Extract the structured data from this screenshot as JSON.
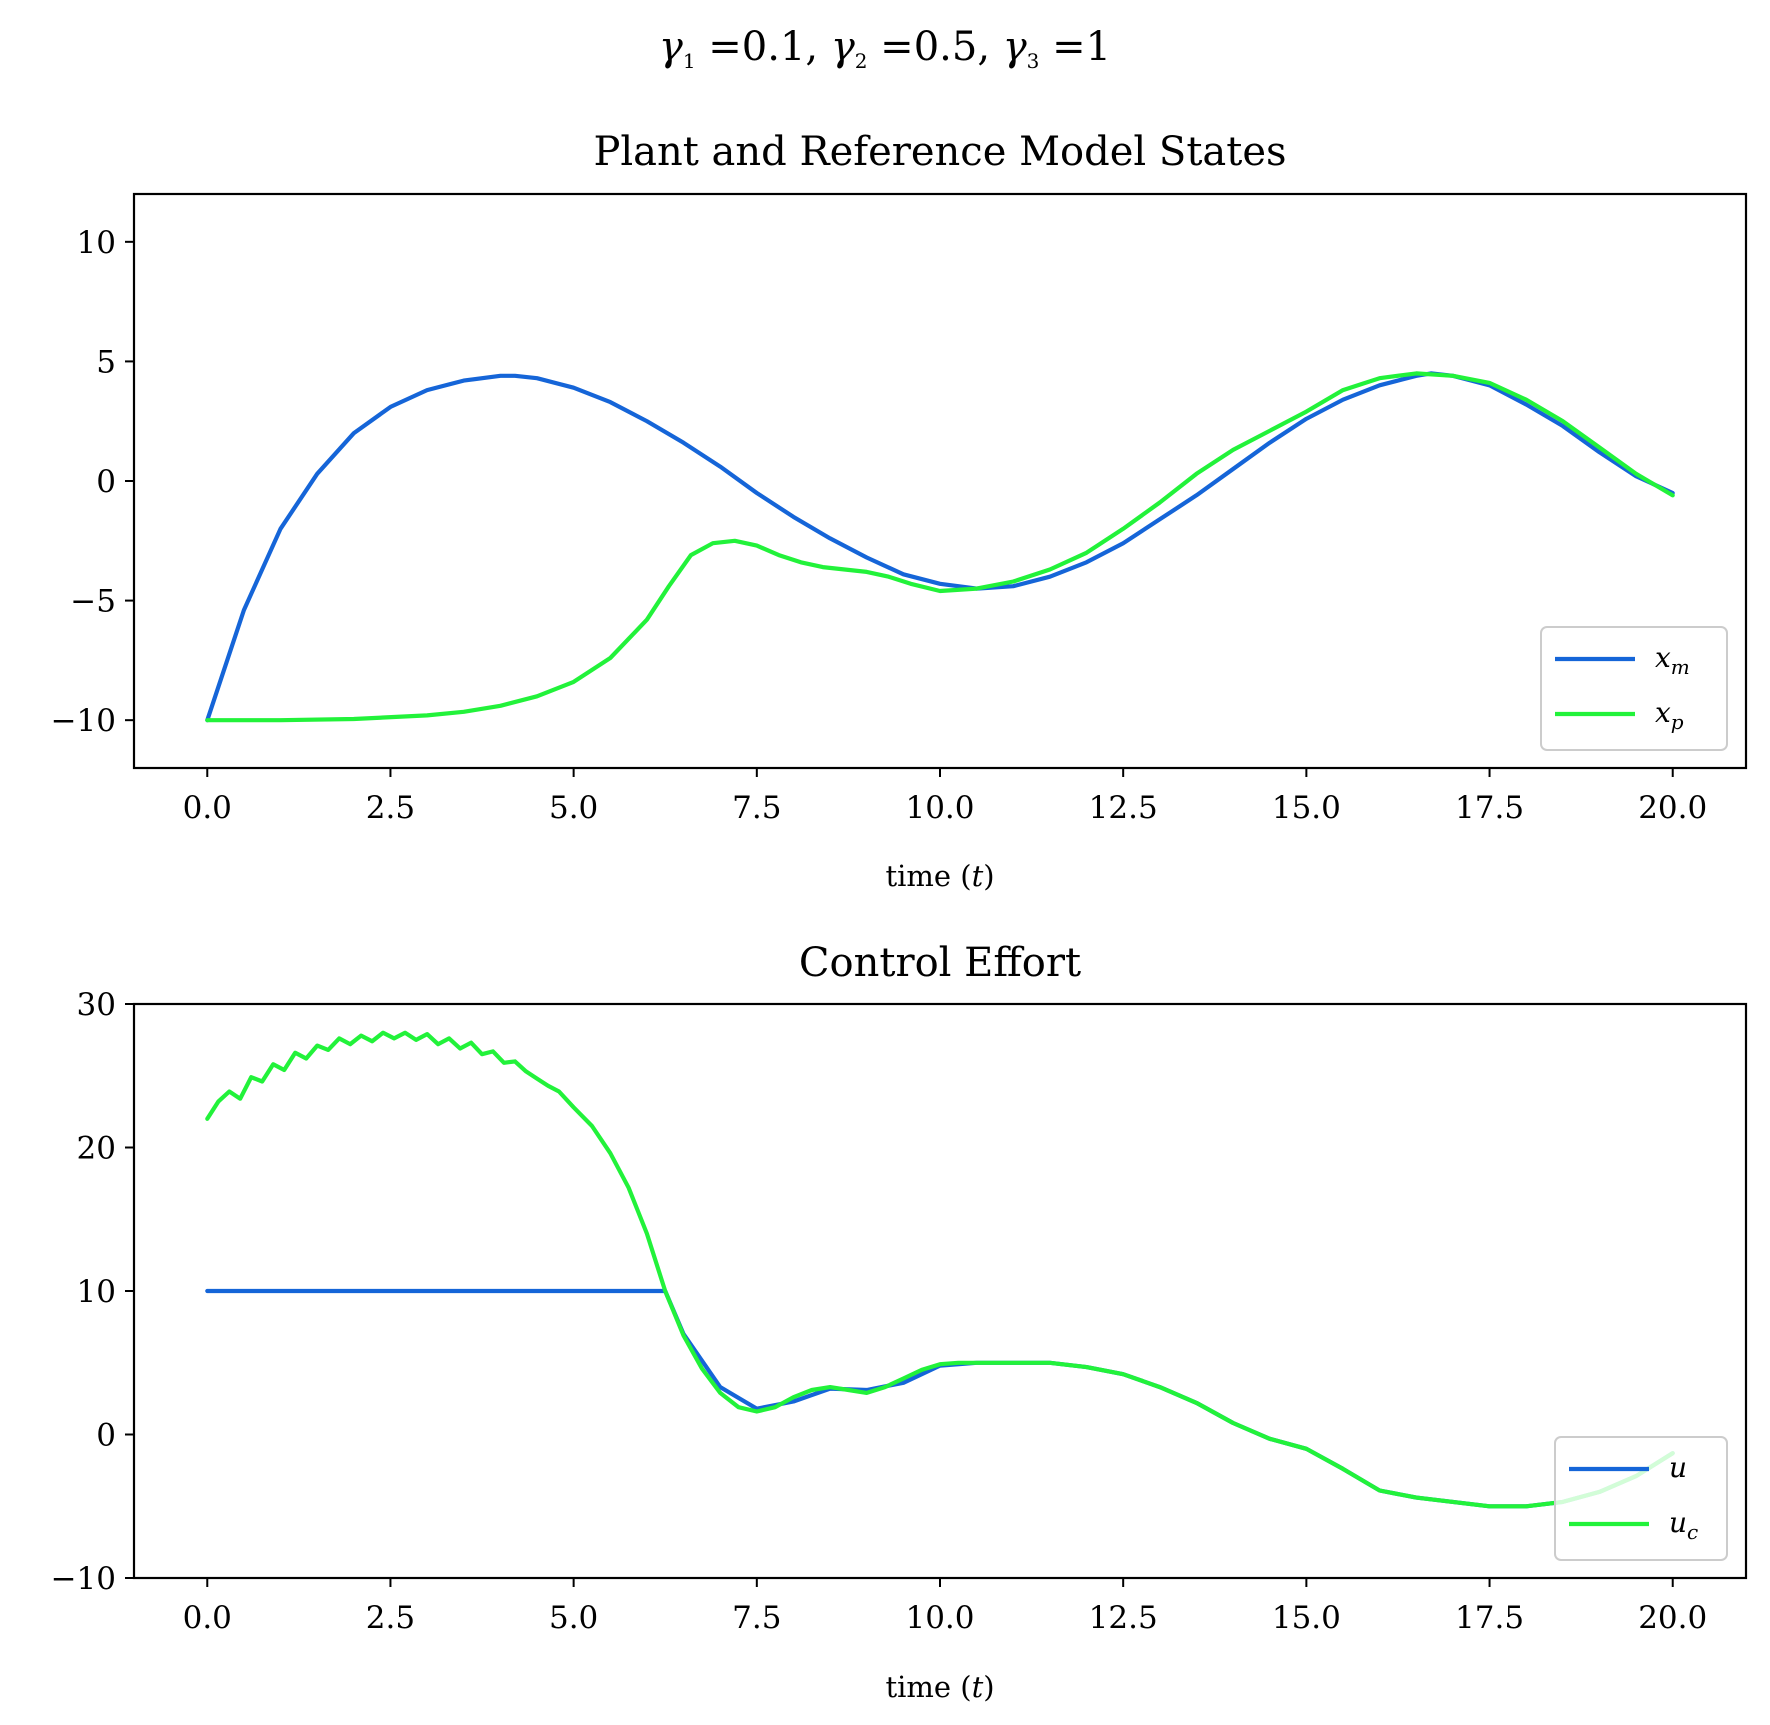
{
  "figure": {
    "suptitle_parts": [
      "γ",
      "1",
      " =0.1, ",
      "γ",
      "2",
      " =0.5, ",
      "γ",
      "3",
      " =1"
    ]
  },
  "colors": {
    "blue": "#1565d8",
    "green": "#22f23a"
  },
  "chart_data": [
    {
      "type": "line",
      "title": "Plant and Reference Model States",
      "xlabel_main": "time (",
      "xlabel_var": "t",
      "xlabel_close": ")",
      "ylabel": "",
      "xlim": [
        -1.0,
        21.0
      ],
      "ylim": [
        -12.0,
        12.0
      ],
      "xticks": [
        0.0,
        2.5,
        5.0,
        7.5,
        10.0,
        12.5,
        15.0,
        17.5,
        20.0
      ],
      "xtick_labels": [
        "0.0",
        "2.5",
        "5.0",
        "7.5",
        "10.0",
        "12.5",
        "15.0",
        "17.5",
        "20.0"
      ],
      "yticks": [
        -10,
        -5,
        0,
        5,
        10
      ],
      "ytick_labels": [
        "−10",
        "−5",
        "0",
        "5",
        "10"
      ],
      "grid": false,
      "legend_placement": "lower right",
      "series": [
        {
          "name": "x",
          "name_sub": "m",
          "color": "#1565d8",
          "x": [
            0,
            0.5,
            1,
            1.5,
            2,
            2.5,
            3,
            3.5,
            4,
            4.2,
            4.5,
            5,
            5.5,
            6,
            6.5,
            7,
            7.5,
            8,
            8.5,
            9,
            9.5,
            10,
            10.5,
            11,
            11.5,
            12,
            12.5,
            13,
            13.5,
            14,
            14.5,
            15,
            15.5,
            16,
            16.5,
            16.7,
            17,
            17.5,
            18,
            18.5,
            19,
            19.5,
            20
          ],
          "y": [
            -10,
            -5.4,
            -2.0,
            0.3,
            2.0,
            3.1,
            3.8,
            4.2,
            4.4,
            4.4,
            4.3,
            3.9,
            3.3,
            2.5,
            1.6,
            0.6,
            -0.5,
            -1.5,
            -2.4,
            -3.2,
            -3.9,
            -4.3,
            -4.5,
            -4.4,
            -4.0,
            -3.4,
            -2.6,
            -1.6,
            -0.6,
            0.5,
            1.6,
            2.6,
            3.4,
            4.0,
            4.4,
            4.5,
            4.4,
            4.0,
            3.2,
            2.3,
            1.2,
            0.2,
            -0.5
          ]
        },
        {
          "name": "x",
          "name_sub": "p",
          "color": "#22f23a",
          "x": [
            0,
            1,
            2,
            3,
            3.5,
            4,
            4.5,
            5,
            5.5,
            6,
            6.3,
            6.6,
            6.9,
            7.2,
            7.5,
            7.8,
            8.1,
            8.4,
            8.7,
            9,
            9.3,
            9.6,
            10,
            10.5,
            11,
            11.5,
            12,
            12.5,
            13,
            13.5,
            14,
            14.5,
            15,
            15.5,
            16,
            16.5,
            17,
            17.5,
            18,
            18.5,
            19,
            19.5,
            20
          ],
          "y": [
            -10,
            -10,
            -9.95,
            -9.8,
            -9.65,
            -9.4,
            -9.0,
            -8.4,
            -7.4,
            -5.8,
            -4.4,
            -3.1,
            -2.6,
            -2.5,
            -2.7,
            -3.1,
            -3.4,
            -3.6,
            -3.7,
            -3.8,
            -4.0,
            -4.3,
            -4.6,
            -4.5,
            -4.2,
            -3.7,
            -3.0,
            -2.0,
            -0.9,
            0.3,
            1.3,
            2.1,
            2.9,
            3.8,
            4.3,
            4.5,
            4.4,
            4.1,
            3.4,
            2.5,
            1.4,
            0.3,
            -0.6
          ]
        }
      ]
    },
    {
      "type": "line",
      "title": "Control Effort",
      "xlabel_main": "time (",
      "xlabel_var": "t",
      "xlabel_close": ")",
      "ylabel": "",
      "xlim": [
        -1.0,
        21.0
      ],
      "ylim": [
        -10.0,
        30.0
      ],
      "xticks": [
        0.0,
        2.5,
        5.0,
        7.5,
        10.0,
        12.5,
        15.0,
        17.5,
        20.0
      ],
      "xtick_labels": [
        "0.0",
        "2.5",
        "5.0",
        "7.5",
        "10.0",
        "12.5",
        "15.0",
        "17.5",
        "20.0"
      ],
      "yticks": [
        -10,
        0,
        10,
        20,
        30
      ],
      "ytick_labels": [
        "−10",
        "0",
        "10",
        "20",
        "30"
      ],
      "grid": false,
      "legend_placement": "lower right",
      "series": [
        {
          "name": "u",
          "name_sub": "",
          "color": "#1565d8",
          "x": [
            0,
            1,
            2,
            3,
            4,
            5,
            6,
            6.25,
            6.5,
            7,
            7.5,
            8,
            8.5,
            9,
            9.5,
            10,
            10.5,
            11,
            11.5,
            12,
            12.5,
            13,
            13.5,
            14,
            14.5,
            15,
            15.5,
            16,
            16.5,
            17,
            17.5,
            18,
            18.5,
            19,
            19.5,
            20
          ],
          "y": [
            10,
            10,
            10,
            10,
            10,
            10,
            10,
            10,
            7.0,
            3.3,
            1.8,
            2.3,
            3.2,
            3.1,
            3.6,
            4.8,
            5.0,
            5.0,
            5.0,
            4.7,
            4.2,
            3.3,
            2.2,
            0.8,
            -0.3,
            -1.0,
            -2.4,
            -3.9,
            -4.4,
            -4.7,
            -5.0,
            -5.0,
            -4.7,
            -4.0,
            -2.9,
            -1.3
          ]
        },
        {
          "name": "u",
          "name_sub": "c",
          "color": "#22f23a",
          "x": [
            0,
            0.15,
            0.3,
            0.45,
            0.6,
            0.75,
            0.9,
            1.05,
            1.2,
            1.35,
            1.5,
            1.65,
            1.8,
            1.95,
            2.1,
            2.25,
            2.4,
            2.55,
            2.7,
            2.85,
            3.0,
            3.15,
            3.3,
            3.45,
            3.6,
            3.75,
            3.9,
            4.05,
            4.2,
            4.35,
            4.5,
            4.65,
            4.8,
            5.0,
            5.25,
            5.5,
            5.75,
            6.0,
            6.25,
            6.5,
            6.75,
            7.0,
            7.25,
            7.5,
            7.75,
            8.0,
            8.25,
            8.5,
            8.75,
            9.0,
            9.25,
            9.5,
            9.75,
            10.0,
            10.25,
            10.5,
            11.0,
            11.5,
            12.0,
            12.5,
            13.0,
            13.5,
            14.0,
            14.5,
            15.0,
            15.5,
            16.0,
            16.5,
            17.0,
            17.5,
            18.0,
            18.5,
            19.0,
            19.5,
            20.0
          ],
          "y": [
            22.0,
            23.2,
            23.9,
            23.4,
            24.9,
            24.6,
            25.8,
            25.4,
            26.6,
            26.2,
            27.1,
            26.8,
            27.6,
            27.2,
            27.8,
            27.4,
            28.0,
            27.6,
            28.0,
            27.5,
            27.9,
            27.2,
            27.6,
            26.9,
            27.3,
            26.5,
            26.7,
            25.9,
            26.0,
            25.3,
            24.8,
            24.3,
            23.9,
            22.8,
            21.5,
            19.6,
            17.2,
            14.0,
            10.0,
            6.9,
            4.6,
            2.9,
            1.9,
            1.6,
            1.9,
            2.6,
            3.1,
            3.3,
            3.1,
            2.9,
            3.3,
            3.9,
            4.5,
            4.9,
            5.0,
            5.0,
            5.0,
            5.0,
            4.7,
            4.2,
            3.3,
            2.2,
            0.8,
            -0.3,
            -1.0,
            -2.4,
            -3.9,
            -4.4,
            -4.7,
            -5.0,
            -5.0,
            -4.7,
            -4.0,
            -2.9,
            -1.3
          ]
        }
      ]
    }
  ]
}
